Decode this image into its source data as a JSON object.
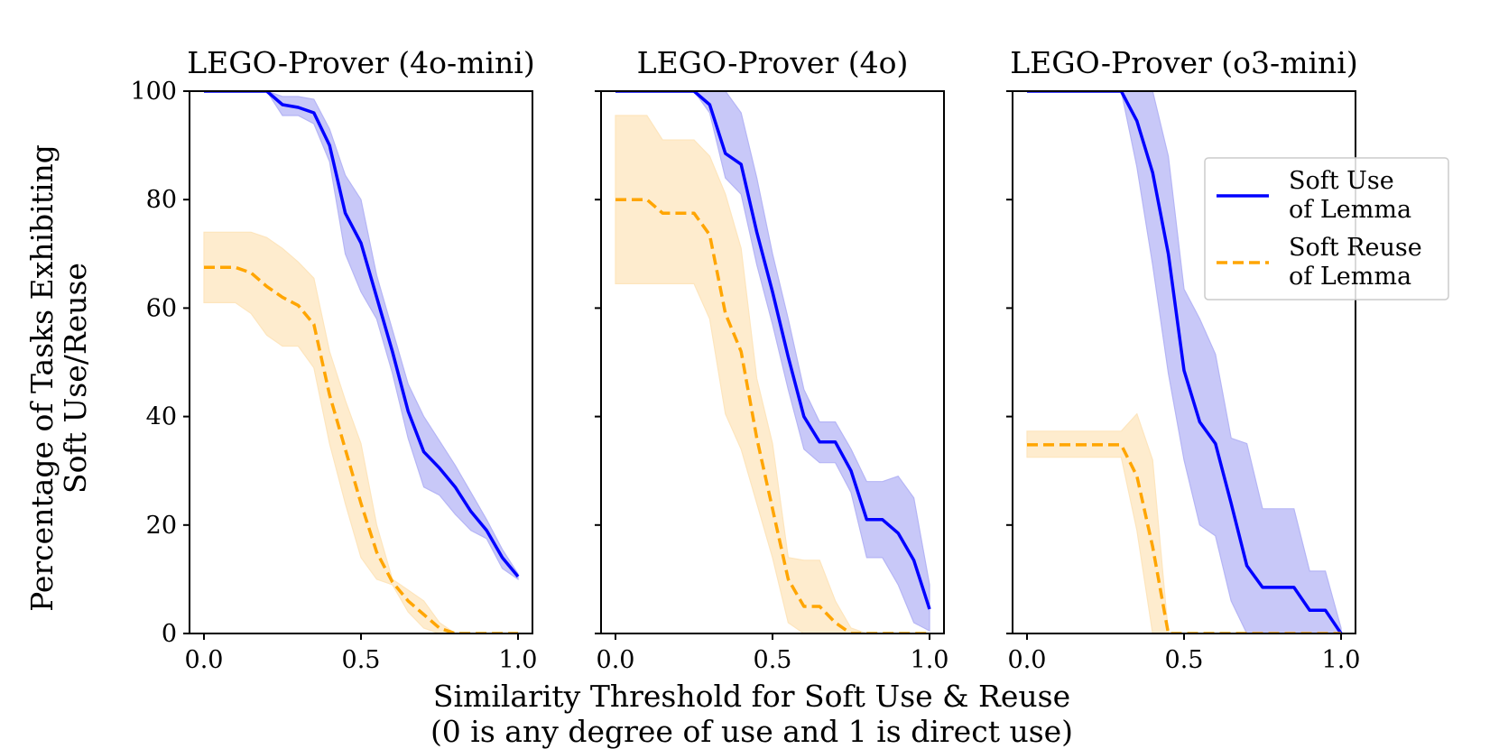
{
  "figure": {
    "xlabel_line1": "Similarity Threshold for Soft Use & Reuse",
    "xlabel_line2": "(0 is any degree of use and 1 is direct use)",
    "ylabel_line1": "Percentage of Tasks Exhibiting",
    "ylabel_line2": "Soft Use/Reuse"
  },
  "legend": {
    "soft_use_line1": "Soft Use",
    "soft_use_line2": "of Lemma",
    "soft_reuse_line1": "Soft Reuse",
    "soft_reuse_line2": "of Lemma"
  },
  "colors": {
    "use_line": "#0000ff",
    "use_band": "#b5b5f5",
    "reuse_line": "#ffa500",
    "reuse_band": "#fde5bd"
  },
  "chart_data": [
    {
      "type": "line",
      "title": "LEGO-Prover (4o-mini)",
      "xlim": [
        0,
        1
      ],
      "ylim": [
        0,
        100
      ],
      "xticks": [
        "0.0",
        "0.5",
        "1.0"
      ],
      "yticks": [
        "0",
        "20",
        "40",
        "60",
        "80",
        "100"
      ],
      "x": [
        0,
        0.05,
        0.1,
        0.15,
        0.2,
        0.25,
        0.3,
        0.35,
        0.4,
        0.45,
        0.5,
        0.55,
        0.6,
        0.65,
        0.7,
        0.75,
        0.8,
        0.85,
        0.9,
        0.95,
        1.0
      ],
      "series": [
        {
          "name": "Soft Use of Lemma",
          "style": "solid",
          "values": [
            100,
            100,
            100,
            100,
            100,
            97.5,
            97,
            96,
            90,
            77.5,
            72,
            62,
            52,
            41,
            33.5,
            30.5,
            27,
            22.5,
            19,
            14,
            10.5
          ],
          "lower": [
            100,
            100,
            100,
            100,
            100,
            95.5,
            95.5,
            94,
            87,
            70,
            63,
            58,
            48,
            36,
            27,
            25.5,
            22,
            19,
            17.5,
            12,
            10
          ],
          "upper": [
            100,
            100,
            100,
            100,
            100,
            99,
            99,
            98.5,
            93,
            84.5,
            80,
            66,
            56,
            46,
            40,
            35.5,
            31,
            26,
            21,
            15.5,
            11
          ]
        },
        {
          "name": "Soft Reuse of Lemma",
          "style": "dashed",
          "values": [
            67.5,
            67.5,
            67.5,
            66.5,
            64,
            62,
            60.5,
            57,
            44,
            34,
            24,
            15,
            9.5,
            6,
            3.5,
            1,
            0,
            0,
            0,
            0,
            0
          ],
          "lower": [
            61,
            61,
            61,
            59,
            55,
            53,
            53,
            49,
            35,
            24,
            14,
            10,
            9,
            4,
            1,
            0,
            0,
            0,
            0,
            0,
            0
          ],
          "upper": [
            74,
            74,
            74,
            74,
            73,
            71,
            68.5,
            65.5,
            52,
            43,
            35,
            20,
            10,
            8,
            6,
            2,
            0,
            0,
            0,
            0,
            0
          ]
        }
      ]
    },
    {
      "type": "line",
      "title": "LEGO-Prover (4o)",
      "xlim": [
        0,
        1
      ],
      "ylim": [
        0,
        100
      ],
      "xticks": [
        "0.0",
        "0.5",
        "1.0"
      ],
      "yticks": [
        "0",
        "20",
        "40",
        "60",
        "80",
        "100"
      ],
      "x": [
        0,
        0.05,
        0.1,
        0.15,
        0.2,
        0.25,
        0.3,
        0.35,
        0.4,
        0.45,
        0.5,
        0.55,
        0.6,
        0.65,
        0.7,
        0.75,
        0.8,
        0.85,
        0.9,
        0.95,
        1.0
      ],
      "series": [
        {
          "name": "Soft Use of Lemma",
          "style": "solid",
          "values": [
            100,
            100,
            100,
            100,
            100,
            100,
            97.5,
            88.5,
            86.5,
            74,
            63,
            51,
            40,
            35.3,
            35.3,
            30,
            21,
            21,
            18.5,
            13.5,
            4.5
          ],
          "lower": [
            100,
            100,
            100,
            100,
            100,
            100,
            96,
            84,
            81,
            68,
            57,
            45,
            34,
            31.5,
            31.5,
            26,
            14,
            14,
            9,
            2,
            0.5
          ],
          "upper": [
            100,
            100,
            100,
            100,
            100,
            100,
            100,
            100,
            96,
            84,
            70,
            58,
            45,
            39,
            39,
            34,
            28,
            28,
            29,
            25,
            9
          ]
        },
        {
          "name": "Soft Reuse of Lemma",
          "style": "dashed",
          "values": [
            80,
            80,
            80,
            77.5,
            77.5,
            77.5,
            73.5,
            59,
            52,
            36,
            23,
            10,
            5,
            5,
            2,
            0,
            0,
            0,
            0,
            0,
            0
          ],
          "lower": [
            64.5,
            64.5,
            64.5,
            64.5,
            64.5,
            64.5,
            58,
            40.5,
            34,
            24,
            14,
            2,
            0,
            0,
            0,
            0,
            0,
            0,
            0,
            0,
            0
          ],
          "upper": [
            95.5,
            95.5,
            95.5,
            91,
            91,
            91,
            88,
            81,
            71,
            47,
            35,
            14,
            13.5,
            13.5,
            6,
            1,
            0,
            0,
            0,
            0,
            0
          ]
        }
      ]
    },
    {
      "type": "line",
      "title": "LEGO-Prover (o3-mini)",
      "xlim": [
        0,
        1
      ],
      "ylim": [
        0,
        100
      ],
      "xticks": [
        "0.0",
        "0.5",
        "1.0"
      ],
      "yticks": [
        "0",
        "20",
        "40",
        "60",
        "80",
        "100"
      ],
      "x": [
        0,
        0.05,
        0.1,
        0.15,
        0.2,
        0.25,
        0.3,
        0.35,
        0.4,
        0.45,
        0.5,
        0.55,
        0.6,
        0.65,
        0.7,
        0.75,
        0.8,
        0.85,
        0.9,
        0.95,
        1.0
      ],
      "series": [
        {
          "name": "Soft Use of Lemma",
          "style": "solid",
          "values": [
            100,
            100,
            100,
            100,
            100,
            100,
            100,
            94.5,
            85,
            70,
            48.5,
            39,
            35,
            24,
            12.5,
            8.5,
            8.5,
            8.5,
            4.3,
            4.3,
            0
          ],
          "lower": [
            100,
            100,
            100,
            100,
            100,
            100,
            100,
            86,
            68,
            48,
            32,
            20,
            18,
            6,
            0,
            0,
            0,
            0,
            0,
            0,
            0
          ],
          "upper": [
            100,
            100,
            100,
            100,
            100,
            100,
            100,
            100,
            100,
            88,
            63.5,
            58,
            51.5,
            36,
            35,
            23,
            23,
            23,
            11.5,
            11.5,
            1
          ]
        },
        {
          "name": "Soft Reuse of Lemma",
          "style": "dashed",
          "values": [
            34.8,
            34.8,
            34.8,
            34.8,
            34.8,
            34.8,
            34.8,
            29,
            16,
            0,
            0,
            0,
            0,
            0,
            0,
            0,
            0,
            0,
            0,
            0,
            0
          ],
          "lower": [
            32.5,
            32.5,
            32.5,
            32.5,
            32.5,
            32.5,
            32.5,
            19,
            0,
            0,
            0,
            0,
            0,
            0,
            0,
            0,
            0,
            0,
            0,
            0,
            0
          ],
          "upper": [
            37.3,
            37.3,
            37.3,
            37.3,
            37.3,
            37.3,
            37.3,
            40.5,
            32,
            0,
            0,
            0,
            0,
            0,
            0,
            0,
            0,
            0,
            0,
            0,
            0
          ]
        }
      ]
    }
  ]
}
